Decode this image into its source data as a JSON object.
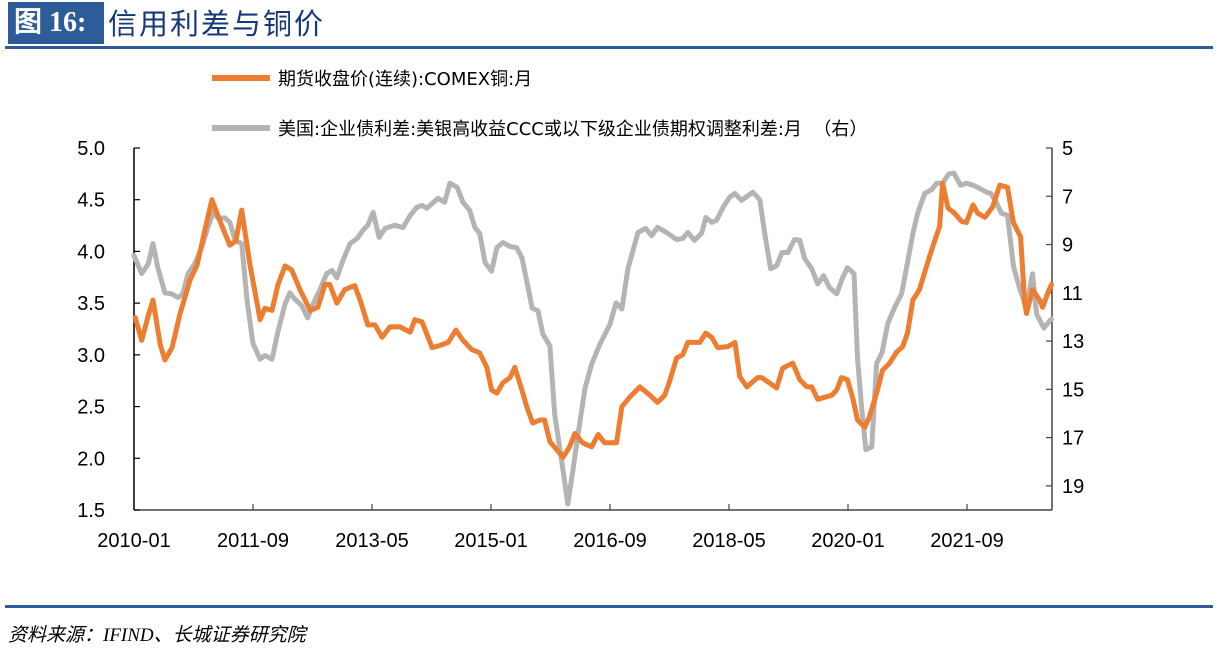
{
  "header": {
    "figure_label": "图 16:",
    "title": "信用利差与铜价"
  },
  "source": "资料来源：IFIND、长城证券研究院",
  "chart_data": {
    "type": "line",
    "title": "信用利差与铜价",
    "x_unit": "months since 2010-01",
    "x_range": [
      0,
      154.3
    ],
    "x_ticks": [
      0,
      20,
      40,
      60,
      80,
      100,
      120,
      140
    ],
    "x_tick_labels": [
      "2010-01",
      "2011-09",
      "2013-05",
      "2015-01",
      "2016-09",
      "2018-05",
      "2020-01",
      "2021-09"
    ],
    "y_left": {
      "range": [
        1.5,
        5.0
      ],
      "ticks": [
        "1.5",
        "2.0",
        "2.5",
        "3.0",
        "3.5",
        "4.0",
        "4.5",
        "5.0"
      ]
    },
    "y_right": {
      "range": [
        5,
        20
      ],
      "inverted": true,
      "ticks": [
        "5",
        "7",
        "9",
        "11",
        "13",
        "15",
        "17",
        "19"
      ]
    },
    "grid": false,
    "legend_placement": "top-center",
    "series": [
      {
        "name": "期货收盘价(连续):COMEX铜:月",
        "axis": "left",
        "color": "#ed7d31",
        "points": [
          [
            0.2,
            3.36
          ],
          [
            1.3,
            3.14
          ],
          [
            2.4,
            3.38
          ],
          [
            3.2,
            3.53
          ],
          [
            4.4,
            3.1
          ],
          [
            5.2,
            2.95
          ],
          [
            6.4,
            3.07
          ],
          [
            7.7,
            3.39
          ],
          [
            9.4,
            3.72
          ],
          [
            10.6,
            3.87
          ],
          [
            11.9,
            4.2
          ],
          [
            13.1,
            4.5
          ],
          [
            14.4,
            4.3
          ],
          [
            16.1,
            4.06
          ],
          [
            17.1,
            4.1
          ],
          [
            18.1,
            4.4
          ],
          [
            19.5,
            3.87
          ],
          [
            21.2,
            3.34
          ],
          [
            22,
            3.45
          ],
          [
            23.2,
            3.43
          ],
          [
            24.2,
            3.68
          ],
          [
            25.4,
            3.86
          ],
          [
            26.5,
            3.82
          ],
          [
            27.9,
            3.63
          ],
          [
            29.6,
            3.43
          ],
          [
            30.9,
            3.46
          ],
          [
            32.1,
            3.68
          ],
          [
            32.9,
            3.68
          ],
          [
            34.1,
            3.5
          ],
          [
            35.4,
            3.63
          ],
          [
            37.1,
            3.67
          ],
          [
            38,
            3.53
          ],
          [
            39.3,
            3.29
          ],
          [
            40.5,
            3.29
          ],
          [
            41.7,
            3.17
          ],
          [
            43,
            3.27
          ],
          [
            44.7,
            3.27
          ],
          [
            46.4,
            3.22
          ],
          [
            47.2,
            3.34
          ],
          [
            48.4,
            3.32
          ],
          [
            50.1,
            3.07
          ],
          [
            51.4,
            3.09
          ],
          [
            52.8,
            3.12
          ],
          [
            54.1,
            3.24
          ],
          [
            55.3,
            3.14
          ],
          [
            56.8,
            3.05
          ],
          [
            58.1,
            3.02
          ],
          [
            59.3,
            2.88
          ],
          [
            60.1,
            2.66
          ],
          [
            61,
            2.63
          ],
          [
            62,
            2.73
          ],
          [
            63.2,
            2.78
          ],
          [
            64,
            2.88
          ],
          [
            65.2,
            2.66
          ],
          [
            66,
            2.5
          ],
          [
            67,
            2.34
          ],
          [
            68.2,
            2.37
          ],
          [
            69,
            2.37
          ],
          [
            69.9,
            2.16
          ],
          [
            71.1,
            2.08
          ],
          [
            72.1,
            2.01
          ],
          [
            73.2,
            2.11
          ],
          [
            74.1,
            2.24
          ],
          [
            75.4,
            2.15
          ],
          [
            76.9,
            2.11
          ],
          [
            78,
            2.23
          ],
          [
            79.1,
            2.15
          ],
          [
            81.1,
            2.15
          ],
          [
            82,
            2.5
          ],
          [
            83.3,
            2.59
          ],
          [
            85,
            2.69
          ],
          [
            86.7,
            2.61
          ],
          [
            88,
            2.54
          ],
          [
            89.2,
            2.61
          ],
          [
            90,
            2.74
          ],
          [
            91.2,
            2.97
          ],
          [
            92.2,
            3.0
          ],
          [
            93.1,
            3.12
          ],
          [
            95.1,
            3.12
          ],
          [
            96.1,
            3.21
          ],
          [
            97.1,
            3.17
          ],
          [
            98.1,
            3.07
          ],
          [
            99.8,
            3.08
          ],
          [
            101,
            3.12
          ],
          [
            101.8,
            2.79
          ],
          [
            103,
            2.69
          ],
          [
            104.8,
            2.78
          ],
          [
            105.5,
            2.78
          ],
          [
            108,
            2.68
          ],
          [
            109,
            2.87
          ],
          [
            110.7,
            2.92
          ],
          [
            111.9,
            2.76
          ],
          [
            113.1,
            2.69
          ],
          [
            113.9,
            2.69
          ],
          [
            114.9,
            2.57
          ],
          [
            117.3,
            2.61
          ],
          [
            118.1,
            2.66
          ],
          [
            118.9,
            2.78
          ],
          [
            119.9,
            2.76
          ],
          [
            120.8,
            2.58
          ],
          [
            121.6,
            2.37
          ],
          [
            122.8,
            2.3
          ],
          [
            123.6,
            2.4
          ],
          [
            124.8,
            2.63
          ],
          [
            125.8,
            2.85
          ],
          [
            127,
            2.92
          ],
          [
            128.2,
            3.03
          ],
          [
            129.2,
            3.08
          ],
          [
            130,
            3.21
          ],
          [
            130.9,
            3.53
          ],
          [
            132,
            3.63
          ],
          [
            133.7,
            3.95
          ],
          [
            134.6,
            4.11
          ],
          [
            135.4,
            4.24
          ],
          [
            135.9,
            4.66
          ],
          [
            136.8,
            4.42
          ],
          [
            137.9,
            4.37
          ],
          [
            139.1,
            4.29
          ],
          [
            139.9,
            4.28
          ],
          [
            141,
            4.45
          ],
          [
            141.8,
            4.37
          ],
          [
            143,
            4.33
          ],
          [
            144.3,
            4.43
          ],
          [
            145.5,
            4.64
          ],
          [
            146.8,
            4.62
          ],
          [
            147.8,
            4.28
          ],
          [
            149,
            4.14
          ],
          [
            149.7,
            3.5
          ],
          [
            150,
            3.4
          ],
          [
            151,
            3.63
          ],
          [
            152.2,
            3.53
          ],
          [
            152.7,
            3.46
          ],
          [
            153.6,
            3.6
          ],
          [
            154.2,
            3.68
          ]
        ]
      },
      {
        "name": "美国:企业债利差:美银高收益CCC或以下级企业债期权调整利差:月  （右）",
        "axis": "right",
        "color": "#b4b4b4",
        "points": [
          [
            0,
            9.46
          ],
          [
            1.3,
            10.2
          ],
          [
            2.4,
            9.8
          ],
          [
            3.2,
            8.96
          ],
          [
            4,
            9.96
          ],
          [
            5.2,
            11.0
          ],
          [
            6.4,
            11.05
          ],
          [
            7.4,
            11.2
          ],
          [
            8.2,
            11.05
          ],
          [
            9.1,
            10.2
          ],
          [
            10.2,
            9.8
          ],
          [
            11.4,
            9.1
          ],
          [
            12.4,
            8.3
          ],
          [
            13.3,
            7.67
          ],
          [
            14.1,
            7.9
          ],
          [
            15.3,
            7.9
          ],
          [
            16.1,
            8.08
          ],
          [
            17,
            8.83
          ],
          [
            18.1,
            8.96
          ],
          [
            19,
            11.33
          ],
          [
            20,
            13.1
          ],
          [
            21.2,
            13.75
          ],
          [
            22,
            13.6
          ],
          [
            23.2,
            13.75
          ],
          [
            24.2,
            12.6
          ],
          [
            25.4,
            11.46
          ],
          [
            26.2,
            11.0
          ],
          [
            27,
            11.25
          ],
          [
            28.2,
            11.54
          ],
          [
            29.2,
            12.04
          ],
          [
            30.1,
            11.46
          ],
          [
            31.2,
            10.9
          ],
          [
            32.4,
            10.2
          ],
          [
            33.3,
            10.08
          ],
          [
            34.1,
            10.38
          ],
          [
            35.1,
            9.67
          ],
          [
            36.3,
            8.96
          ],
          [
            37.5,
            8.75
          ],
          [
            38.5,
            8.4
          ],
          [
            39.3,
            8.2
          ],
          [
            40.2,
            7.67
          ],
          [
            41.2,
            8.7
          ],
          [
            42.2,
            8.33
          ],
          [
            43.8,
            8.2
          ],
          [
            45.2,
            8.3
          ],
          [
            46.4,
            7.8
          ],
          [
            47.5,
            7.46
          ],
          [
            48.4,
            7.38
          ],
          [
            49.2,
            7.5
          ],
          [
            50.1,
            7.3
          ],
          [
            51.1,
            7.08
          ],
          [
            52.2,
            7.25
          ],
          [
            53.1,
            6.46
          ],
          [
            54.3,
            6.63
          ],
          [
            55.3,
            7.25
          ],
          [
            56.4,
            7.58
          ],
          [
            57.3,
            8.29
          ],
          [
            58.1,
            8.54
          ],
          [
            59,
            9.75
          ],
          [
            60.1,
            10.1
          ],
          [
            61,
            9.13
          ],
          [
            62,
            8.92
          ],
          [
            63.2,
            9.08
          ],
          [
            64.3,
            9.13
          ],
          [
            65.2,
            9.54
          ],
          [
            66,
            10.5
          ],
          [
            66.9,
            11.63
          ],
          [
            67.9,
            11.75
          ],
          [
            68.7,
            12.7
          ],
          [
            69.9,
            13.2
          ],
          [
            70.7,
            16.04
          ],
          [
            71.9,
            18.0
          ],
          [
            72.9,
            19.75
          ],
          [
            73.8,
            18.3
          ],
          [
            74.6,
            16.9
          ],
          [
            75.8,
            14.96
          ],
          [
            76.9,
            13.96
          ],
          [
            78.3,
            13.13
          ],
          [
            80,
            12.3
          ],
          [
            81,
            11.42
          ],
          [
            82,
            11.67
          ],
          [
            83,
            10.0
          ],
          [
            84.7,
            8.5
          ],
          [
            86,
            8.33
          ],
          [
            87,
            8.63
          ],
          [
            88,
            8.29
          ],
          [
            89.5,
            8.5
          ],
          [
            91.2,
            8.79
          ],
          [
            92.2,
            8.75
          ],
          [
            93.1,
            8.5
          ],
          [
            94.2,
            8.83
          ],
          [
            95.4,
            8.54
          ],
          [
            96.1,
            7.88
          ],
          [
            97.1,
            8.08
          ],
          [
            97.9,
            8.0
          ],
          [
            99,
            7.46
          ],
          [
            100.1,
            7.04
          ],
          [
            101,
            6.88
          ],
          [
            102.1,
            7.17
          ],
          [
            104,
            6.83
          ],
          [
            104.8,
            7.04
          ],
          [
            105.2,
            7.17
          ],
          [
            106,
            8.54
          ],
          [
            107,
            10.0
          ],
          [
            108,
            9.88
          ],
          [
            108.9,
            9.33
          ],
          [
            109.9,
            9.33
          ],
          [
            111,
            8.79
          ],
          [
            111.9,
            8.83
          ],
          [
            112.7,
            9.58
          ],
          [
            113.9,
            10.0
          ],
          [
            114.9,
            10.63
          ],
          [
            115.9,
            10.29
          ],
          [
            116.9,
            10.79
          ],
          [
            118.1,
            11.04
          ],
          [
            119.1,
            10.38
          ],
          [
            119.9,
            9.96
          ],
          [
            121,
            10.21
          ],
          [
            121.6,
            13.7
          ],
          [
            122.3,
            15.8
          ],
          [
            123,
            17.5
          ],
          [
            124,
            17.38
          ],
          [
            124.8,
            13.92
          ],
          [
            125.7,
            13.5
          ],
          [
            126.7,
            12.25
          ],
          [
            127.8,
            11.63
          ],
          [
            129,
            11.04
          ],
          [
            129.9,
            9.88
          ],
          [
            130.9,
            8.54
          ],
          [
            131.7,
            7.71
          ],
          [
            132.9,
            6.88
          ],
          [
            134.1,
            6.71
          ],
          [
            134.9,
            6.46
          ],
          [
            135.9,
            6.46
          ],
          [
            136.9,
            6.08
          ],
          [
            137.8,
            6.04
          ],
          [
            138.9,
            6.54
          ],
          [
            139.9,
            6.46
          ],
          [
            141,
            6.54
          ],
          [
            142.1,
            6.67
          ],
          [
            143.3,
            6.83
          ],
          [
            144,
            6.88
          ],
          [
            145,
            7.29
          ],
          [
            145.8,
            7.71
          ],
          [
            146.8,
            7.79
          ],
          [
            147.8,
            9.88
          ],
          [
            148.8,
            10.79
          ],
          [
            150,
            11.63
          ],
          [
            151,
            10.21
          ],
          [
            151.7,
            11.88
          ],
          [
            152.9,
            12.46
          ],
          [
            154.2,
            12.08
          ]
        ]
      }
    ]
  }
}
